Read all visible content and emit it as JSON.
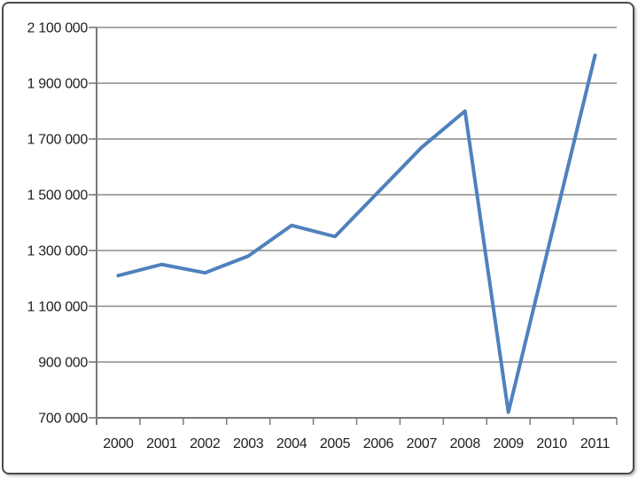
{
  "frame": {
    "border_color": "#4b4b4b",
    "background_color": "#ffffff"
  },
  "chart_data": {
    "type": "line",
    "title": "",
    "xlabel": "",
    "ylabel": "",
    "categories": [
      "2000",
      "2001",
      "2002",
      "2003",
      "2004",
      "2005",
      "2006",
      "2007",
      "2008",
      "2009",
      "2010",
      "2011"
    ],
    "values": [
      1210000,
      1250000,
      1220000,
      1280000,
      1390000,
      1350000,
      1510000,
      1670000,
      1800000,
      720000,
      1360000,
      2000000
    ],
    "series_name": "",
    "ylim": [
      700000,
      2100000
    ],
    "ytick_step": 200000,
    "ytick_labels": [
      "700 000",
      "900 000",
      "1 100 000",
      "1 300 000",
      "1 500 000",
      "1 700 000",
      "1 900 000",
      "2 100 000"
    ],
    "grid": true,
    "legend": false,
    "line_color": "#4F81BD",
    "gridline_color": "#8c8c8c",
    "axis_color": "#7a7a7a",
    "label_color": "#1f1f1f"
  }
}
